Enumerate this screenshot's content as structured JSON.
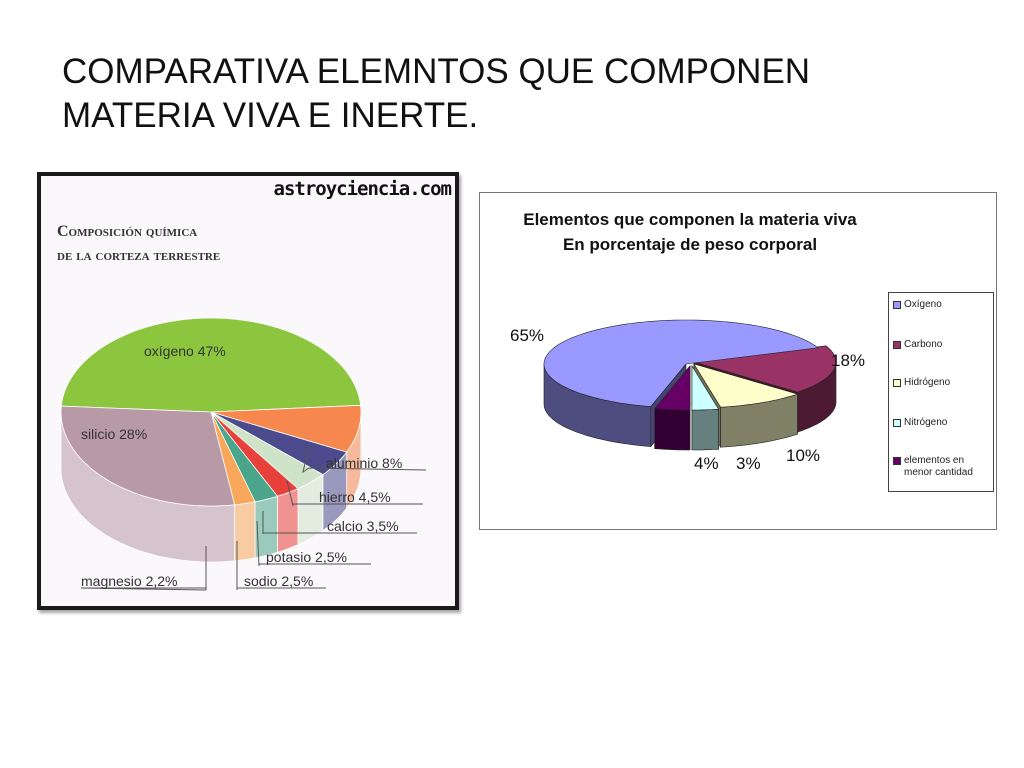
{
  "slide": {
    "title_lines": [
      "COMPARATIVA ELEMNTOS QUE COMPONEN",
      "MATERIA VIVA E INERTE."
    ]
  },
  "chart_data": [
    {
      "type": "pie",
      "title_lines": [
        "Composición química",
        "de la corteza terrestre"
      ],
      "watermark": "astroyciencia.com",
      "slices": [
        {
          "label": "oxígeno 47%",
          "value": 47,
          "color": "#8cc63f"
        },
        {
          "label": "aluminio 8%",
          "value": 8,
          "color": "#f5874f"
        },
        {
          "label": "hierro 4,5%",
          "value": 4.5,
          "color": "#4a4a8c"
        },
        {
          "label": "calcio 3,5%",
          "value": 3.5,
          "color": "#cfe3c9"
        },
        {
          "label": "potasio 2,5%",
          "value": 2.5,
          "color": "#e8403a"
        },
        {
          "label": "sodio 2,5%",
          "value": 2.5,
          "color": "#4aa58a"
        },
        {
          "label": "magnesio 2,2%",
          "value": 2.2,
          "color": "#f9a75b"
        },
        {
          "label": "silicio 28%",
          "value": 28,
          "color": "#b89aa6"
        }
      ]
    },
    {
      "type": "pie",
      "title_lines": [
        "Elementos que componen la materia viva",
        "En porcentaje de peso corporal"
      ],
      "slices": [
        {
          "label": "65%",
          "value": 65,
          "color": "#9999ff",
          "legend": "Oxígeno"
        },
        {
          "label": "18%",
          "value": 18,
          "color": "#993366",
          "legend": "Carbono"
        },
        {
          "label": "10%",
          "value": 10,
          "color": "#ffffcc",
          "legend": "Hidrógeno"
        },
        {
          "label": "3%",
          "value": 3,
          "color": "#ccffff",
          "legend": "Nitrógeno"
        },
        {
          "label": "4%",
          "value": 4,
          "color": "#660066",
          "legend": "elementos en menor cantidad"
        }
      ]
    }
  ]
}
